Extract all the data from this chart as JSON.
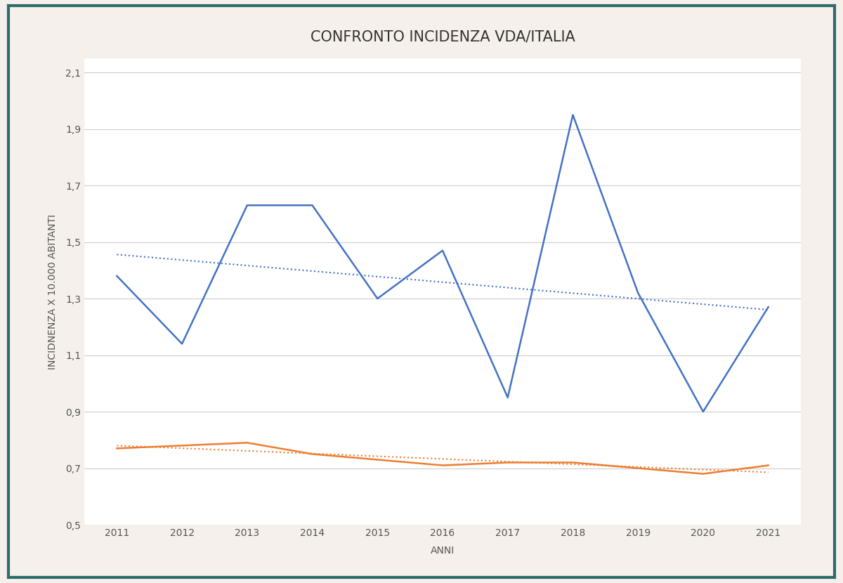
{
  "title": "CONFRONTO INCIDENZA VDA/ITALIA",
  "xlabel": "ANNI",
  "ylabel": "INCIDNENZA X 10.000 ABITANTI",
  "years": [
    2011,
    2012,
    2013,
    2014,
    2015,
    2016,
    2017,
    2018,
    2019,
    2020,
    2021
  ],
  "vda_values": [
    1.38,
    1.14,
    1.63,
    1.63,
    1.3,
    1.47,
    0.95,
    1.95,
    1.32,
    0.9,
    1.27
  ],
  "italia_values": [
    0.77,
    0.78,
    0.79,
    0.75,
    0.73,
    0.71,
    0.72,
    0.72,
    0.7,
    0.68,
    0.71
  ],
  "vda_color": "#4472C4",
  "italia_color": "#ED7D31",
  "trend_vda_color": "#4472C4",
  "trend_italia_color": "#ED7D31",
  "ylim": [
    0.5,
    2.15
  ],
  "yticks": [
    0.5,
    0.7,
    0.9,
    1.1,
    1.3,
    1.5,
    1.7,
    1.9,
    2.1
  ],
  "ytick_labels": [
    "0,5",
    "0,7",
    "0,9",
    "1,1",
    "1,3",
    "1,5",
    "1,7",
    "1,9",
    "2,1"
  ],
  "background_color": "#FFFFFF",
  "outer_background": "#F5F0EB",
  "border_color": "#2E6B6B",
  "title_fontsize": 15,
  "axis_label_fontsize": 10,
  "tick_fontsize": 10
}
